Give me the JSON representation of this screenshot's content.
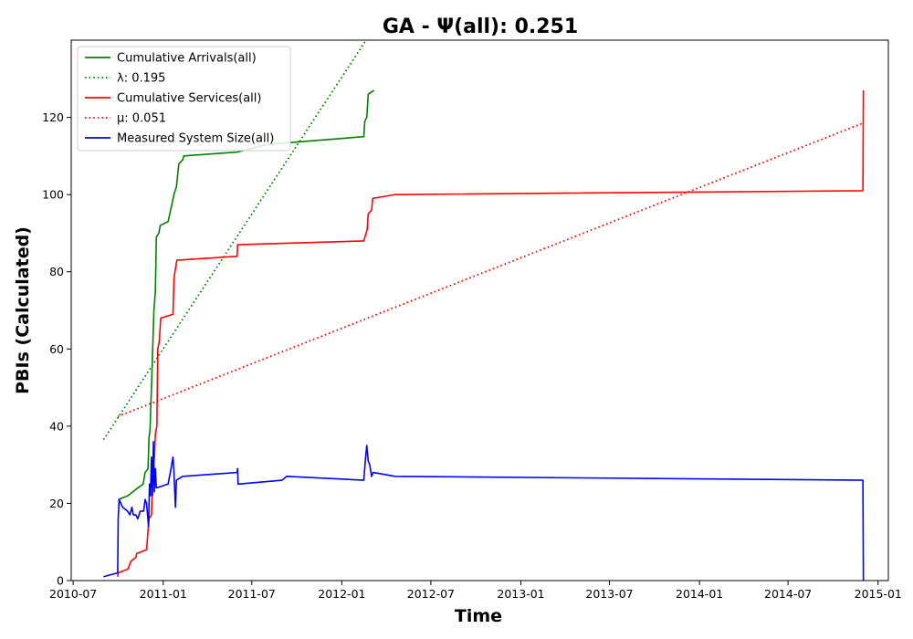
{
  "chart_data": {
    "type": "line",
    "title": "GA -  Ψ(all): 0.251",
    "xlabel": "Time",
    "ylabel": "PBIs (Calculated)",
    "x_type": "date",
    "xlim": [
      "2010-06-27",
      "2015-01-22"
    ],
    "ylim": [
      0,
      140
    ],
    "x_ticks": [
      "2010-07-01",
      "2011-01-01",
      "2011-07-01",
      "2012-01-01",
      "2012-07-01",
      "2013-01-01",
      "2013-07-01",
      "2014-01-01",
      "2014-07-01",
      "2015-01-01"
    ],
    "x_tick_labels": [
      "2010-07",
      "2011-01",
      "2011-07",
      "2012-01",
      "2012-07",
      "2013-01",
      "2013-07",
      "2014-01",
      "2014-07",
      "2015-01"
    ],
    "y_ticks": [
      0,
      20,
      40,
      60,
      80,
      100,
      120
    ],
    "y_tick_labels": [
      "0",
      "20",
      "40",
      "60",
      "80",
      "100",
      "120"
    ],
    "grid": false,
    "legend_position": "top-left",
    "series": [
      {
        "name": "Cumulative Arrivals(all)",
        "color": "#008000",
        "style": "solid",
        "points": [
          [
            "2010-10-01",
            21
          ],
          [
            "2010-10-21",
            22
          ],
          [
            "2010-11-10",
            24
          ],
          [
            "2010-11-21",
            25
          ],
          [
            "2010-11-25",
            28
          ],
          [
            "2010-12-01",
            29
          ],
          [
            "2010-12-03",
            37
          ],
          [
            "2010-12-05",
            39
          ],
          [
            "2010-12-08",
            50
          ],
          [
            "2010-12-11",
            62
          ],
          [
            "2010-12-13",
            70
          ],
          [
            "2010-12-16",
            75
          ],
          [
            "2010-12-18",
            89
          ],
          [
            "2010-12-23",
            90
          ],
          [
            "2010-12-26",
            92
          ],
          [
            "2011-01-11",
            93
          ],
          [
            "2011-01-18",
            97
          ],
          [
            "2011-01-23",
            100
          ],
          [
            "2011-01-28",
            102
          ],
          [
            "2011-02-02",
            108
          ],
          [
            "2011-02-10",
            109
          ],
          [
            "2011-02-12",
            110
          ],
          [
            "2011-06-01",
            111
          ],
          [
            "2011-08-01",
            113
          ],
          [
            "2012-02-15",
            115
          ],
          [
            "2012-02-17",
            119
          ],
          [
            "2012-02-21",
            120
          ],
          [
            "2012-02-24",
            126
          ],
          [
            "2012-03-07",
            127
          ]
        ]
      },
      {
        "name": "λ: 0.195",
        "color": "#008000",
        "style": "dotted",
        "points": [
          [
            "2010-09-01",
            36.5
          ],
          [
            "2012-03-01",
            142
          ]
        ]
      },
      {
        "name": "Cumulative Services(all)",
        "color": "#ff0000",
        "style": "solid",
        "points": [
          [
            "2010-09-30",
            1
          ],
          [
            "2010-10-01",
            2
          ],
          [
            "2010-10-21",
            3
          ],
          [
            "2010-10-27",
            5
          ],
          [
            "2010-11-06",
            6
          ],
          [
            "2010-11-08",
            7
          ],
          [
            "2010-11-28",
            8
          ],
          [
            "2010-12-03",
            16
          ],
          [
            "2010-12-08",
            17
          ],
          [
            "2010-12-11",
            29
          ],
          [
            "2010-12-14",
            32
          ],
          [
            "2010-12-16",
            38
          ],
          [
            "2010-12-19",
            40
          ],
          [
            "2010-12-21",
            60
          ],
          [
            "2010-12-24",
            62
          ],
          [
            "2010-12-27",
            68
          ],
          [
            "2011-01-21",
            69
          ],
          [
            "2011-01-23",
            78
          ],
          [
            "2011-01-25",
            80
          ],
          [
            "2011-01-29",
            83
          ],
          [
            "2011-06-01",
            84
          ],
          [
            "2011-06-02",
            87
          ],
          [
            "2012-02-15",
            88
          ],
          [
            "2012-02-22",
            91
          ],
          [
            "2012-02-24",
            95
          ],
          [
            "2012-03-02",
            96
          ],
          [
            "2012-03-04",
            99
          ],
          [
            "2012-04-19",
            100
          ],
          [
            "2014-12-01",
            101
          ],
          [
            "2014-12-02",
            127
          ]
        ]
      },
      {
        "name": "μ: 0.051",
        "color": "#ff0000",
        "style": "dotted",
        "points": [
          [
            "2010-09-30",
            42.5
          ],
          [
            "2014-12-01",
            118.5
          ]
        ]
      },
      {
        "name": "Measured System Size(all)",
        "color": "#0000ff",
        "style": "solid",
        "points": [
          [
            "2010-09-01",
            1
          ],
          [
            "2010-09-30",
            2
          ],
          [
            "2010-10-01",
            16
          ],
          [
            "2010-10-03",
            21
          ],
          [
            "2010-10-10",
            19
          ],
          [
            "2010-10-20",
            18
          ],
          [
            "2010-10-25",
            17
          ],
          [
            "2010-10-29",
            19
          ],
          [
            "2010-11-01",
            17
          ],
          [
            "2010-11-06",
            17
          ],
          [
            "2010-11-10",
            16
          ],
          [
            "2010-11-15",
            18
          ],
          [
            "2010-11-22",
            18
          ],
          [
            "2010-11-25",
            21
          ],
          [
            "2010-11-28",
            20
          ],
          [
            "2010-12-02",
            14
          ],
          [
            "2010-12-04",
            25
          ],
          [
            "2010-12-06",
            22
          ],
          [
            "2010-12-08",
            32
          ],
          [
            "2010-12-10",
            22
          ],
          [
            "2010-12-12",
            36
          ],
          [
            "2010-12-14",
            23
          ],
          [
            "2010-12-16",
            29
          ],
          [
            "2010-12-18",
            24
          ],
          [
            "2011-01-11",
            25
          ],
          [
            "2011-01-17",
            29
          ],
          [
            "2011-01-21",
            32
          ],
          [
            "2011-01-23",
            28
          ],
          [
            "2011-01-26",
            19
          ],
          [
            "2011-01-28",
            26
          ],
          [
            "2011-02-10",
            27
          ],
          [
            "2011-06-01",
            28
          ],
          [
            "2011-06-02",
            29
          ],
          [
            "2011-06-03",
            25
          ],
          [
            "2011-09-01",
            26
          ],
          [
            "2011-09-10",
            27
          ],
          [
            "2012-02-15",
            26
          ],
          [
            "2012-02-18",
            31
          ],
          [
            "2012-02-21",
            35
          ],
          [
            "2012-02-24",
            31
          ],
          [
            "2012-02-27",
            30
          ],
          [
            "2012-03-02",
            27
          ],
          [
            "2012-03-05",
            28
          ],
          [
            "2012-04-19",
            27
          ],
          [
            "2014-12-01",
            26
          ],
          [
            "2014-12-02",
            0
          ]
        ]
      }
    ]
  }
}
